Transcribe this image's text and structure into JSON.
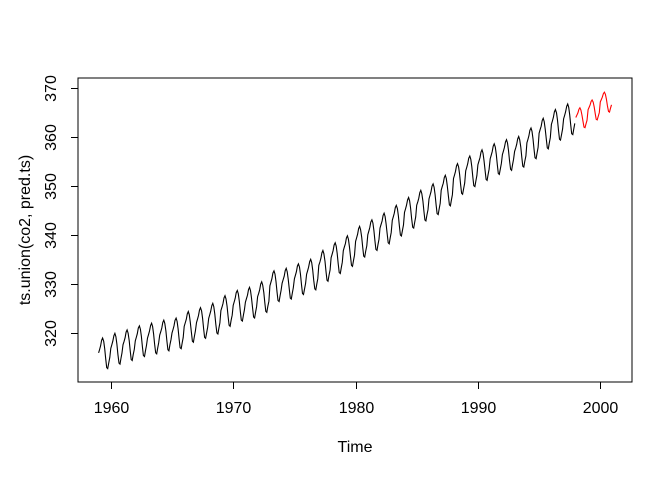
{
  "chart_data": {
    "type": "line",
    "title": "",
    "xlabel": "Time",
    "ylabel": "ts.union(co2, pred.ts)",
    "x_ticks": [
      1960,
      1970,
      1980,
      1990,
      2000
    ],
    "y_ticks": [
      320,
      330,
      340,
      350,
      360,
      370
    ],
    "xlim": [
      1957.32,
      2002.59
    ],
    "ylim": [
      310.0,
      372.04
    ],
    "grid": false,
    "legend_position": "none",
    "background_color": "#ffffff",
    "box_color": "#000000",
    "series": [
      {
        "name": "co2",
        "color": "#000000",
        "start_year": 1959,
        "frequency": 12,
        "values": [
          315.94,
          316.64,
          317.39,
          318.52,
          318.98,
          318.31,
          316.79,
          314.73,
          312.93,
          312.73,
          313.93,
          315.02,
          316.87,
          317.57,
          318.32,
          319.45,
          319.91,
          319.24,
          317.72,
          315.66,
          313.86,
          313.66,
          314.86,
          315.95,
          317.6,
          318.3,
          319.05,
          320.18,
          320.64,
          319.97,
          318.45,
          316.39,
          314.59,
          314.39,
          315.59,
          316.68,
          318.41,
          319.11,
          319.86,
          320.99,
          321.45,
          320.78,
          319.26,
          317.2,
          315.4,
          315.2,
          316.4,
          317.49,
          318.95,
          319.65,
          320.4,
          321.53,
          321.99,
          321.32,
          319.8,
          317.74,
          315.94,
          315.74,
          316.94,
          318.03,
          319.58,
          320.28,
          321.03,
          322.16,
          322.62,
          321.95,
          320.43,
          318.37,
          316.57,
          316.37,
          317.57,
          318.66,
          320.0,
          320.7,
          321.45,
          322.58,
          323.04,
          322.37,
          320.85,
          318.79,
          316.99,
          316.79,
          317.99,
          319.08,
          321.34,
          322.04,
          322.79,
          323.92,
          324.38,
          323.71,
          322.19,
          320.13,
          318.33,
          318.13,
          319.33,
          320.42,
          322.12,
          322.82,
          323.57,
          324.7,
          325.16,
          324.49,
          322.97,
          320.91,
          319.11,
          318.91,
          320.11,
          321.2,
          323.0,
          323.7,
          324.45,
          325.58,
          326.04,
          325.37,
          323.85,
          321.79,
          319.99,
          319.79,
          320.99,
          322.08,
          324.58,
          325.28,
          326.03,
          327.16,
          327.62,
          326.95,
          325.43,
          323.37,
          321.57,
          321.37,
          322.57,
          323.66,
          325.64,
          326.34,
          327.09,
          328.22,
          328.68,
          328.01,
          326.49,
          324.43,
          322.63,
          322.43,
          323.63,
          324.72,
          326.28,
          326.98,
          327.73,
          328.86,
          329.32,
          328.65,
          327.13,
          325.07,
          323.27,
          323.07,
          324.27,
          325.36,
          327.41,
          328.11,
          328.86,
          329.99,
          330.45,
          329.78,
          328.26,
          326.2,
          324.4,
          324.2,
          325.4,
          326.49,
          329.64,
          330.34,
          331.09,
          332.22,
          332.68,
          332.01,
          330.49,
          328.43,
          326.63,
          326.43,
          327.63,
          328.72,
          330.14,
          330.84,
          331.59,
          332.72,
          333.18,
          332.51,
          330.99,
          328.93,
          327.13,
          326.93,
          328.13,
          329.22,
          331.07,
          331.77,
          332.52,
          333.65,
          334.11,
          333.44,
          331.92,
          329.86,
          328.06,
          327.86,
          329.06,
          330.15,
          332.0,
          332.7,
          333.45,
          334.58,
          335.04,
          334.37,
          332.85,
          330.79,
          328.99,
          328.79,
          329.99,
          331.08,
          333.79,
          334.49,
          335.24,
          336.37,
          336.83,
          336.16,
          334.64,
          332.58,
          330.78,
          330.58,
          331.78,
          332.87,
          335.36,
          336.06,
          336.81,
          337.94,
          338.4,
          337.73,
          336.21,
          334.15,
          332.35,
          332.15,
          333.35,
          334.44,
          336.8,
          337.5,
          338.25,
          339.38,
          339.84,
          339.17,
          337.65,
          335.59,
          333.79,
          333.59,
          334.79,
          335.88,
          338.71,
          339.41,
          340.16,
          341.29,
          341.75,
          341.08,
          339.56,
          337.5,
          335.7,
          335.5,
          336.7,
          337.79,
          340.07,
          340.77,
          341.52,
          342.65,
          343.11,
          342.44,
          340.92,
          338.86,
          337.06,
          336.86,
          338.06,
          339.15,
          341.41,
          342.11,
          342.86,
          343.99,
          344.45,
          343.78,
          342.26,
          340.2,
          338.4,
          338.2,
          339.4,
          340.49,
          343.01,
          343.71,
          344.46,
          345.59,
          346.05,
          345.38,
          343.86,
          341.8,
          340.0,
          339.8,
          341.0,
          342.09,
          344.61,
          345.31,
          346.06,
          347.19,
          347.65,
          346.98,
          345.46,
          343.4,
          341.6,
          341.4,
          342.6,
          343.69,
          346.08,
          346.78,
          347.53,
          348.66,
          349.12,
          348.45,
          346.93,
          344.87,
          343.07,
          342.87,
          344.07,
          345.16,
          347.38,
          348.08,
          348.83,
          349.96,
          350.42,
          349.75,
          348.23,
          346.17,
          344.37,
          344.17,
          345.37,
          346.46,
          349.15,
          349.85,
          350.6,
          351.73,
          352.19,
          351.52,
          350.0,
          347.94,
          346.14,
          345.94,
          347.14,
          348.23,
          351.53,
          352.23,
          352.98,
          354.11,
          354.57,
          353.9,
          352.38,
          350.32,
          348.52,
          348.32,
          349.52,
          350.61,
          353.08,
          353.78,
          354.53,
          355.66,
          356.12,
          355.45,
          353.93,
          351.87,
          350.07,
          349.87,
          351.07,
          352.16,
          354.35,
          355.05,
          355.8,
          356.93,
          357.39,
          356.72,
          355.2,
          353.14,
          351.34,
          351.14,
          352.34,
          353.43,
          355.57,
          356.27,
          357.02,
          358.15,
          358.61,
          357.94,
          356.42,
          354.36,
          352.56,
          352.36,
          353.56,
          354.65,
          356.41,
          357.11,
          357.86,
          358.99,
          359.45,
          358.78,
          357.26,
          355.2,
          353.4,
          353.2,
          354.4,
          355.49,
          357.06,
          357.76,
          358.51,
          359.64,
          360.1,
          359.43,
          357.91,
          355.85,
          354.05,
          353.85,
          355.05,
          356.14,
          358.79,
          359.49,
          360.24,
          361.37,
          361.83,
          361.16,
          359.64,
          357.58,
          355.78,
          355.58,
          356.78,
          357.87,
          360.78,
          361.48,
          362.23,
          363.36,
          363.82,
          363.15,
          361.63,
          359.57,
          357.77,
          357.57,
          358.77,
          359.86,
          362.57,
          363.27,
          364.02,
          365.15,
          365.61,
          364.94,
          363.42,
          361.36,
          359.56,
          359.36,
          360.56,
          361.65,
          363.69,
          364.39,
          365.14,
          366.27,
          366.73,
          366.06,
          364.54,
          362.48,
          360.68,
          360.48,
          361.68,
          362.77
        ]
      },
      {
        "name": "pred.ts",
        "color": "#FF0000",
        "start_year": 1998,
        "frequency": 12,
        "values": [
          363.97,
          364.43,
          364.92,
          365.65,
          365.95,
          365.51,
          364.53,
          363.19,
          362.02,
          361.89,
          362.67,
          363.38,
          365.57,
          366.03,
          366.52,
          367.25,
          367.55,
          367.11,
          366.13,
          364.79,
          363.62,
          363.49,
          364.27,
          364.98,
          367.17,
          367.63,
          368.12,
          368.85,
          369.15,
          368.71,
          367.73,
          366.39,
          365.22,
          365.09,
          365.87,
          366.58
        ]
      }
    ]
  }
}
